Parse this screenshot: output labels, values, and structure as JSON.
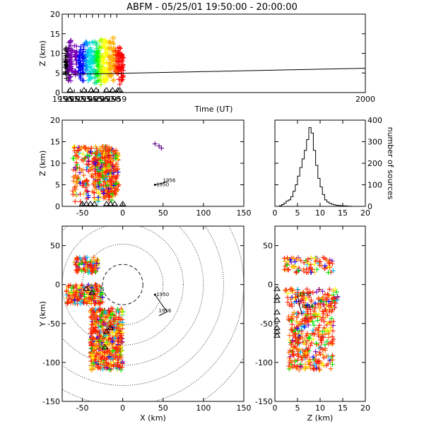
{
  "title": "ABFM - 05/25/01 19:50:00 - 20:00:00",
  "colors": {
    "time_scale": [
      "#000000",
      "#5a0080",
      "#7a00b8",
      "#0000ff",
      "#0090ff",
      "#00e0e0",
      "#00e080",
      "#00ff00",
      "#a0ff00",
      "#ffff00",
      "#ffb000",
      "#ff5000",
      "#ff0000"
    ],
    "sensor": "#000000",
    "line": "#000000"
  },
  "chart_data": [
    {
      "id": "time_height",
      "type": "scatter",
      "xlabel": "Time (UT)",
      "ylabel": "Z (km)",
      "xlim": [
        1950,
        2000
      ],
      "ylim": [
        0,
        20
      ],
      "xticks": [
        "1950",
        "1951",
        "1952",
        "1953",
        "1954",
        "1955",
        "1956",
        "1957",
        "1958",
        "1959",
        "2000"
      ],
      "yticks": [
        "0",
        "5",
        "10",
        "15",
        "20"
      ],
      "flash_groups": [
        {
          "t": 1950.7,
          "zmin": 3.5,
          "zmax": 12,
          "color_index": 0
        },
        {
          "t": 1951.1,
          "zmin": 3,
          "zmax": 13,
          "color_index": 1
        },
        {
          "t": 1951.5,
          "zmin": 2.5,
          "zmax": 14,
          "color_index": 2
        },
        {
          "t": 1952.2,
          "zmin": 4,
          "zmax": 12,
          "color_index": 2
        },
        {
          "t": 1952.9,
          "zmin": 3,
          "zmax": 12,
          "color_index": 3
        },
        {
          "t": 1953.5,
          "zmin": 3,
          "zmax": 13,
          "color_index": 3
        },
        {
          "t": 1954.0,
          "zmin": 3,
          "zmax": 13,
          "color_index": 4
        },
        {
          "t": 1954.5,
          "zmin": 3,
          "zmax": 13,
          "color_index": 5
        },
        {
          "t": 1955.0,
          "zmin": 3,
          "zmax": 14,
          "color_index": 5
        },
        {
          "t": 1955.5,
          "zmin": 2,
          "zmax": 13,
          "color_index": 6
        },
        {
          "t": 1955.9,
          "zmin": 2,
          "zmax": 14,
          "color_index": 7
        },
        {
          "t": 1956.4,
          "zmin": 2,
          "zmax": 14,
          "color_index": 8
        },
        {
          "t": 1956.9,
          "zmin": 2,
          "zmax": 14,
          "color_index": 9
        },
        {
          "t": 1957.4,
          "zmin": 3,
          "zmax": 14,
          "color_index": 9
        },
        {
          "t": 1957.9,
          "zmin": 3,
          "zmax": 13,
          "color_index": 10
        },
        {
          "t": 1958.4,
          "zmin": 3,
          "zmax": 14,
          "color_index": 10
        },
        {
          "t": 1958.9,
          "zmin": 3,
          "zmax": 12,
          "color_index": 11
        },
        {
          "t": 1959.4,
          "zmin": 2,
          "zmax": 12,
          "color_index": 12
        },
        {
          "t": 1959.9,
          "zmin": 3,
          "zmax": 10,
          "color_index": 12
        }
      ],
      "sensor_times": [
        1951.3,
        1953.6,
        1954.8,
        1955.6,
        1957.3,
        1958.3,
        1959.2,
        1959.5
      ]
    },
    {
      "id": "x_height",
      "type": "scatter",
      "xlabel": "",
      "ylabel": "Z (km)",
      "xlim": [
        -75,
        150
      ],
      "ylim": [
        0,
        20
      ],
      "xticks": [
        "-50",
        "0",
        "50",
        "100",
        "150"
      ],
      "yticks": [
        "0",
        "5",
        "10",
        "15",
        "20"
      ],
      "clusters": [
        {
          "xmin": -62,
          "xmax": -10,
          "zmin": 1,
          "zmax": 14
        },
        {
          "xmin": -35,
          "xmax": -5,
          "zmin": 2,
          "zmax": 13
        }
      ],
      "outliers": [
        [
          40,
          14.5
        ],
        [
          45,
          14
        ],
        [
          48,
          13.5
        ]
      ],
      "track": {
        "points": [
          [
            40,
            5
          ],
          [
            48,
            5.3
          ],
          [
            55,
            5.8
          ]
        ],
        "start_label": "1950",
        "end_label": "1956"
      },
      "sensor_x": [
        -50,
        -45,
        -40,
        -35,
        -20,
        -15,
        -10,
        0
      ]
    },
    {
      "id": "histogram",
      "type": "bar",
      "xlabel": "",
      "ylabel": "number of sources",
      "xlim": [
        0,
        20
      ],
      "ylim": [
        0,
        400
      ],
      "xticks": [
        "0",
        "5",
        "10",
        "15",
        "20"
      ],
      "yticks": [
        "0",
        "100",
        "200",
        "300",
        "400"
      ],
      "bin_width": 0.5,
      "bin_starts": [
        1,
        1.5,
        2,
        2.5,
        3,
        3.5,
        4,
        4.5,
        5,
        5.5,
        6,
        6.5,
        7,
        7.5,
        8,
        8.5,
        9,
        9.5,
        10,
        10.5,
        11,
        11.5,
        12,
        12.5,
        13,
        13.5,
        14,
        14.5,
        15,
        15.5,
        16,
        16.5,
        17,
        17.5
      ],
      "values": [
        3,
        8,
        15,
        25,
        30,
        45,
        70,
        100,
        140,
        180,
        220,
        260,
        310,
        365,
        340,
        260,
        190,
        130,
        90,
        55,
        30,
        20,
        14,
        10,
        7,
        5,
        4,
        3,
        2,
        2,
        1,
        1,
        0,
        0
      ]
    },
    {
      "id": "plan_view",
      "type": "scatter",
      "xlabel": "X (km)",
      "ylabel": "Y (km)",
      "xlim": [
        -75,
        150
      ],
      "ylim": [
        -150,
        75
      ],
      "xticks": [
        "-50",
        "0",
        "50",
        "100",
        "150"
      ],
      "yticks": [
        "-150",
        "-100",
        "-50",
        "0",
        "50"
      ],
      "rings_km": [
        25,
        50,
        75,
        100,
        125,
        150,
        175
      ],
      "clusters": [
        {
          "xmin": -60,
          "xmax": -30,
          "ymin": 15,
          "ymax": 35
        },
        {
          "xmin": -70,
          "xmax": -25,
          "ymin": -25,
          "ymax": 0
        },
        {
          "xmin": -40,
          "xmax": 0,
          "ymin": -110,
          "ymax": -30
        }
      ],
      "track": {
        "points": [
          [
            40,
            -13
          ],
          [
            48,
            -25
          ],
          [
            55,
            -35
          ],
          [
            45,
            -40
          ]
        ],
        "start_label": "1950",
        "end_label": "1956"
      },
      "sensors": [
        [
          -45,
          -5
        ],
        [
          -38,
          -10
        ],
        [
          -20,
          -60
        ],
        [
          -15,
          -55
        ],
        [
          -22,
          -80
        ]
      ]
    },
    {
      "id": "z_y",
      "type": "scatter",
      "xlabel": "Z (km)",
      "ylabel": "",
      "xlim": [
        0,
        20
      ],
      "ylim": [
        -150,
        75
      ],
      "xticks": [
        "0",
        "5",
        "10",
        "15",
        "20"
      ],
      "yticks": [
        "-150",
        "-100",
        "-50",
        "0",
        "50"
      ],
      "clusters": [
        {
          "zmin": 2,
          "zmax": 13,
          "ymin": 15,
          "ymax": 35
        },
        {
          "zmin": 2,
          "zmax": 14,
          "ymin": -30,
          "ymax": -5
        },
        {
          "zmin": 3,
          "zmax": 13,
          "ymin": -110,
          "ymax": -30
        }
      ],
      "track": {
        "points": [
          [
            5,
            -13
          ],
          [
            5.5,
            -28
          ],
          [
            6,
            -38
          ]
        ],
        "start_label": "1950",
        "end_label": "1956"
      },
      "sensor_y": [
        -5,
        -15,
        -20,
        -35,
        -45,
        -55,
        -60,
        -65
      ]
    }
  ]
}
